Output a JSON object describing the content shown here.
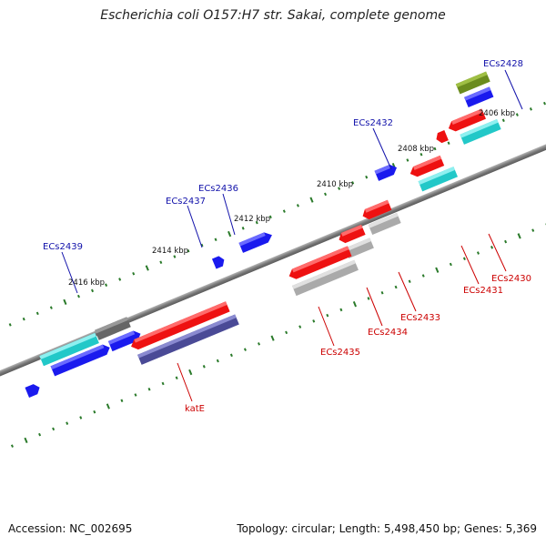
{
  "title": "Escherichia coli O157:H7 str. Sakai, complete genome",
  "footer": {
    "accession": "Accession: NC_002695",
    "topology": "Topology: circular; Length: 5,498,450 bp; Genes: 5,369"
  },
  "kbp_labels": [
    "2406 kbp",
    "2408 kbp",
    "2410 kbp",
    "2412 kbp",
    "2414 kbp",
    "2416 kbp"
  ],
  "gene_labels": [
    {
      "id": "ECs2428",
      "strand": "forward"
    },
    {
      "id": "ECs2432",
      "strand": "forward"
    },
    {
      "id": "ECs2436",
      "strand": "forward"
    },
    {
      "id": "ECs2437",
      "strand": "forward"
    },
    {
      "id": "ECs2439",
      "strand": "forward"
    },
    {
      "id": "ECs2430",
      "strand": "reverse"
    },
    {
      "id": "ECs2431",
      "strand": "reverse"
    },
    {
      "id": "ECs2433",
      "strand": "reverse"
    },
    {
      "id": "ECs2434",
      "strand": "reverse"
    },
    {
      "id": "ECs2435",
      "strand": "reverse"
    },
    {
      "id": "katE",
      "strand": "reverse"
    }
  ],
  "colors": {
    "forward_label": "#1111aa",
    "reverse_label": "#cc0000",
    "backbone": "#8a8a8a",
    "tick": "#2a7a2a",
    "gene_red": "#ee1111",
    "gene_blue": "#1a1aee",
    "gene_cyan": "#22c8c8",
    "gene_gray": "#aaaaaa",
    "gene_darkgray": "#666666",
    "gene_olive": "#6b8c1e",
    "gene_slateblue": "#4a4a96"
  }
}
